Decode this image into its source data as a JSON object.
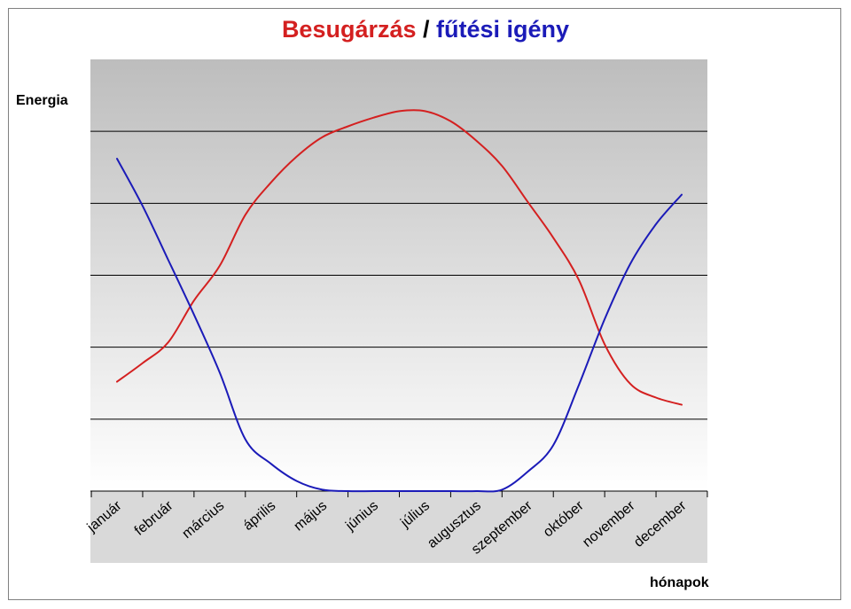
{
  "chart_data": {
    "type": "line",
    "title": {
      "part1": "Besugárzás",
      "separator": " / ",
      "part2": "fűtési igény"
    },
    "ylabel": "Energia",
    "xlabel": "hónapok",
    "categories": [
      "január",
      "február",
      "március",
      "április",
      "május",
      "június",
      "július",
      "augusztus",
      "szeptember",
      "október",
      "november",
      "december"
    ],
    "ylim": [
      0,
      6
    ],
    "y_ticks_labeled": false,
    "grid": {
      "horizontal": true,
      "lines": 5
    },
    "legend": "none",
    "series": [
      {
        "color": "#d42020",
        "x": [
          0,
          0.5,
          1,
          1.5,
          2,
          2.5,
          3,
          3.5,
          4,
          4.5,
          5,
          5.5,
          6,
          6.5,
          7,
          7.5,
          8,
          8.5,
          9,
          9.5,
          10,
          10.5,
          11
        ],
        "values": [
          1.52,
          1.78,
          2.07,
          2.65,
          3.13,
          3.84,
          4.29,
          4.65,
          4.92,
          5.07,
          5.19,
          5.28,
          5.28,
          5.14,
          4.87,
          4.52,
          4.02,
          3.52,
          2.93,
          2.04,
          1.49,
          1.3,
          1.2
        ]
      },
      {
        "color": "#1b1bb8",
        "x": [
          0,
          0.5,
          1,
          1.5,
          2,
          2.5,
          3,
          3.5,
          4,
          4.5,
          5,
          5.5,
          6,
          6.5,
          7,
          7.5,
          8,
          8.5,
          9,
          9.5,
          10,
          10.5,
          11
        ],
        "values": [
          4.62,
          3.96,
          3.21,
          2.45,
          1.65,
          0.72,
          0.38,
          0.14,
          0.02,
          0.0,
          0.0,
          0.0,
          0.0,
          0.0,
          0.0,
          0.02,
          0.27,
          0.64,
          1.48,
          2.39,
          3.16,
          3.71,
          4.12
        ]
      }
    ]
  }
}
